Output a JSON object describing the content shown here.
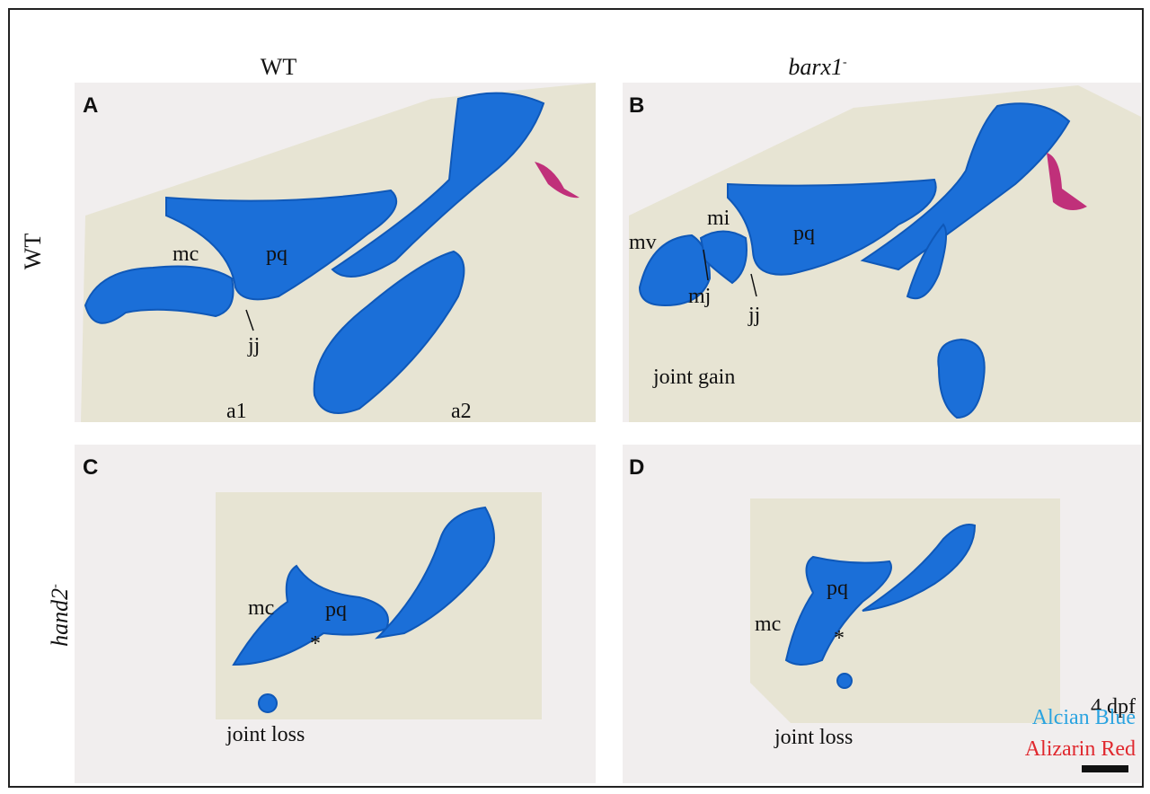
{
  "columns": [
    {
      "label": "WT"
    },
    {
      "label": "barx1",
      "superscript": "-"
    }
  ],
  "rows": [
    {
      "label": "WT"
    },
    {
      "label": "hand2",
      "superscript": "-"
    }
  ],
  "panels": [
    {
      "letter": "A",
      "annotations": [
        "mc",
        "pq",
        "jj",
        "a1",
        "a2"
      ]
    },
    {
      "letter": "B",
      "annotations": [
        "mi",
        "mv",
        "pq",
        "mj",
        "jj",
        "joint gain"
      ]
    },
    {
      "letter": "C",
      "annotations": [
        "mc",
        "pq",
        "*",
        "joint loss"
      ]
    },
    {
      "letter": "D",
      "annotations": [
        "pq",
        "mc",
        "*",
        "joint loss"
      ]
    }
  ],
  "legend": {
    "stage": "4 dpf",
    "stains": [
      "Alcian Blue",
      "Alizarin Red"
    ]
  }
}
